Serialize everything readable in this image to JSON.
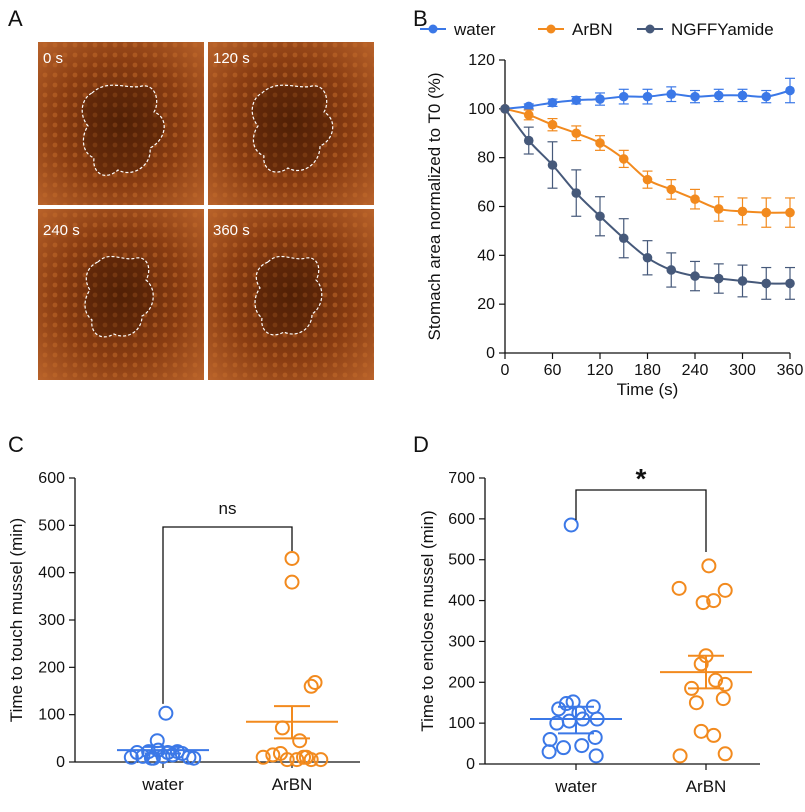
{
  "panels": {
    "A": {
      "letter": "A",
      "time_labels": [
        "0 s",
        "120 s",
        "240 s",
        "360 s"
      ]
    },
    "B": {
      "letter": "B"
    },
    "C": {
      "letter": "C"
    },
    "D": {
      "letter": "D"
    }
  },
  "colors": {
    "water": "#3b78e7",
    "ArBN": "#f28a1e",
    "NGFFYamide": "#46597a",
    "photo_bg": "#7a3410",
    "photo_light": "#b35a22"
  },
  "chart_data": [
    {
      "id": "B",
      "type": "line",
      "xlabel": "Time (s)",
      "ylabel": "Stomach area normalized to T0 (%)",
      "xlim": [
        0,
        360
      ],
      "ylim": [
        0,
        120
      ],
      "xticks": [
        0,
        60,
        120,
        180,
        240,
        300,
        360
      ],
      "yticks": [
        0,
        20,
        40,
        60,
        80,
        100,
        120
      ],
      "legend_position": "top",
      "x": [
        0,
        30,
        60,
        90,
        120,
        150,
        180,
        210,
        240,
        270,
        300,
        330,
        360
      ],
      "series": [
        {
          "name": "water",
          "color": "#3b78e7",
          "values": [
            100,
            101,
            102.5,
            103.5,
            104,
            105,
            105,
            106,
            105,
            105.5,
            105.5,
            105,
            107.5
          ],
          "errors": [
            0,
            1,
            1.5,
            1.5,
            2.5,
            3,
            3,
            3,
            2.5,
            2.5,
            2.5,
            2.5,
            5
          ]
        },
        {
          "name": "ArBN",
          "color": "#f28a1e",
          "values": [
            100,
            97.5,
            93.5,
            90,
            86,
            79.5,
            71,
            67,
            63,
            59,
            58,
            57.5,
            57.5
          ],
          "errors": [
            0,
            2,
            2.5,
            3,
            3,
            3.5,
            3.5,
            4,
            4,
            5,
            5.5,
            6,
            6
          ]
        },
        {
          "name": "NGFFYamide",
          "color": "#46597a",
          "values": [
            100,
            87,
            77,
            65.5,
            56,
            47,
            39,
            34,
            31.5,
            30.5,
            29.5,
            28.5,
            28.5
          ],
          "errors": [
            0,
            5.5,
            9.5,
            9.5,
            8,
            8,
            7,
            7,
            6,
            6,
            6.5,
            6.5,
            6.5
          ]
        }
      ]
    },
    {
      "id": "C",
      "type": "scatter",
      "ylabel": "Time to touch mussel (min)",
      "categories": [
        "water",
        "ArBN"
      ],
      "ylim": [
        0,
        600
      ],
      "yticks": [
        0,
        100,
        200,
        300,
        400,
        500,
        600
      ],
      "groups": [
        {
          "name": "water",
          "color": "#3b78e7",
          "mean": 25,
          "sem_low": 18,
          "sem_high": 32,
          "points": [
            [
              -0.33,
              10
            ],
            [
              -0.27,
              20
            ],
            [
              -0.21,
              12
            ],
            [
              -0.15,
              22
            ],
            [
              -0.1,
              8
            ],
            [
              -0.05,
              25
            ],
            [
              0.0,
              12
            ],
            [
              0.05,
              20
            ],
            [
              0.1,
              15
            ],
            [
              0.15,
              22
            ],
            [
              0.2,
              18
            ],
            [
              0.27,
              10
            ],
            [
              0.32,
              8
            ],
            [
              -0.06,
              45
            ],
            [
              0.03,
              103
            ],
            [
              -0.12,
              8
            ]
          ]
        },
        {
          "name": "ArBN",
          "color": "#f28a1e",
          "mean": 85,
          "sem_low": 50,
          "sem_high": 118,
          "points": [
            [
              -0.3,
              10
            ],
            [
              -0.2,
              15
            ],
            [
              -0.12,
              18
            ],
            [
              -0.05,
              5
            ],
            [
              0.05,
              5
            ],
            [
              0.12,
              10
            ],
            [
              0.2,
              5
            ],
            [
              0.3,
              5
            ],
            [
              0.08,
              45
            ],
            [
              0.2,
              160
            ],
            [
              0.24,
              168
            ],
            [
              -0.1,
              72
            ],
            [
              0.0,
              380
            ],
            [
              0.0,
              430
            ],
            [
              0.15,
              10
            ]
          ]
        }
      ],
      "significance": "ns"
    },
    {
      "id": "D",
      "type": "scatter",
      "ylabel": "Time to enclose mussel (min)",
      "categories": [
        "water",
        "ArBN"
      ],
      "ylim": [
        0,
        700
      ],
      "yticks": [
        0,
        100,
        200,
        300,
        400,
        500,
        600,
        700
      ],
      "groups": [
        {
          "name": "water",
          "color": "#3b78e7",
          "mean": 110,
          "sem_low": 75,
          "sem_high": 140,
          "points": [
            [
              -0.28,
              30
            ],
            [
              -0.13,
              40
            ],
            [
              0.06,
              45
            ],
            [
              0.21,
              20
            ],
            [
              -0.27,
              60
            ],
            [
              0.2,
              65
            ],
            [
              -0.2,
              100
            ],
            [
              -0.07,
              105
            ],
            [
              0.07,
              110
            ],
            [
              0.22,
              110
            ],
            [
              -0.18,
              135
            ],
            [
              0.03,
              125
            ],
            [
              0.18,
              140
            ],
            [
              -0.1,
              148
            ],
            [
              -0.03,
              152
            ],
            [
              -0.05,
              585
            ]
          ]
        },
        {
          "name": "ArBN",
          "color": "#f28a1e",
          "mean": 225,
          "sem_low": 185,
          "sem_high": 265,
          "points": [
            [
              -0.27,
              20
            ],
            [
              0.2,
              25
            ],
            [
              -0.05,
              80
            ],
            [
              0.08,
              70
            ],
            [
              -0.1,
              150
            ],
            [
              0.18,
              160
            ],
            [
              -0.15,
              185
            ],
            [
              0.1,
              205
            ],
            [
              -0.05,
              245
            ],
            [
              0.2,
              195
            ],
            [
              0.0,
              265
            ],
            [
              -0.28,
              430
            ],
            [
              0.2,
              425
            ],
            [
              -0.03,
              395
            ],
            [
              0.08,
              400
            ],
            [
              0.03,
              485
            ]
          ]
        }
      ],
      "significance": "*"
    }
  ]
}
